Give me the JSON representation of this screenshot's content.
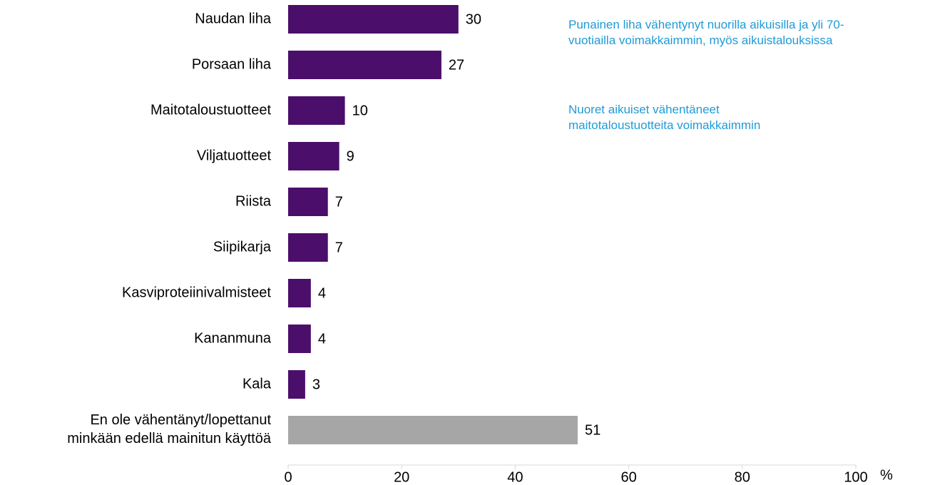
{
  "chart_data": {
    "type": "barh",
    "categories": [
      "Naudan liha",
      "Porsaan liha",
      "Maitotaloustuotteet",
      "Viljatuotteet",
      "Riista",
      "Siipikarja",
      "Kasviproteiinivalmisteet",
      "Kananmuna",
      "Kala",
      "En ole vähentänyt/lopettanut\nminkään edellä mainitun käyttöä"
    ],
    "values": [
      30,
      27,
      10,
      9,
      7,
      7,
      4,
      4,
      3,
      51
    ],
    "colors": [
      "#4b0e6b",
      "#4b0e6b",
      "#4b0e6b",
      "#4b0e6b",
      "#4b0e6b",
      "#4b0e6b",
      "#4b0e6b",
      "#4b0e6b",
      "#4b0e6b",
      "#a6a6a6"
    ],
    "xlim": [
      0,
      100
    ],
    "xticks": [
      0,
      20,
      40,
      60,
      80,
      100
    ],
    "xlabel": "%",
    "annotations": [
      "Punainen liha vähentynyt nuorilla aikuisilla ja yli 70-\nvuotiailla voimakkaimmin, myös aikuistalouksissa",
      "Nuoret aikuiset vähentäneet\nmaitotaloustuotteita voimakkaimmin"
    ],
    "annotation_color": "#1f9bd7"
  }
}
